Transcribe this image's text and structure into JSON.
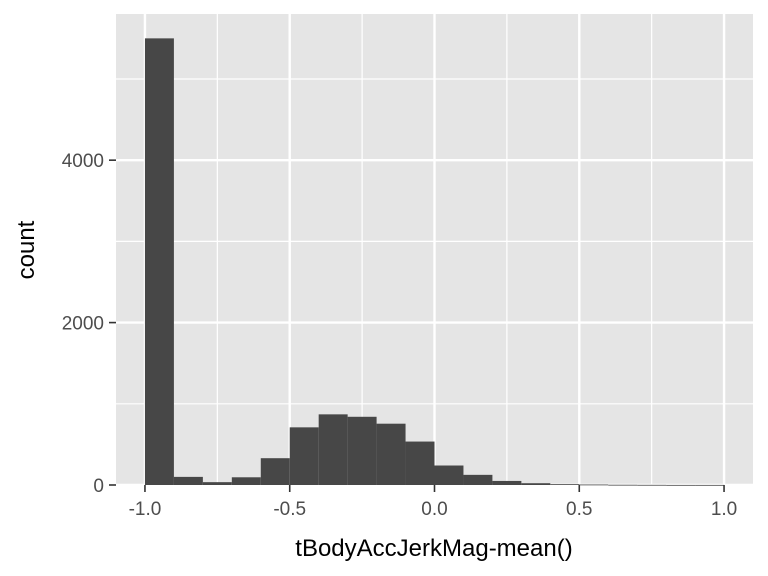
{
  "chart_data": {
    "type": "bar",
    "xlabel": "tBodyAccJerkMag-mean()",
    "ylabel": "count",
    "xlim": [
      -1.1,
      1.1
    ],
    "ylim": [
      0,
      5800
    ],
    "x_ticks": [
      -1.0,
      -0.5,
      0.0,
      0.5,
      1.0
    ],
    "x_tick_labels": [
      "-1.0",
      "-0.5",
      "0.0",
      "0.5",
      "1.0"
    ],
    "y_ticks": [
      0,
      2000,
      4000
    ],
    "y_tick_labels": [
      "0",
      "2000",
      "4000"
    ],
    "bin_width": 0.1,
    "bins": [
      {
        "x": -0.95,
        "count": 5500
      },
      {
        "x": -0.85,
        "count": 100
      },
      {
        "x": -0.75,
        "count": 35
      },
      {
        "x": -0.65,
        "count": 95
      },
      {
        "x": -0.55,
        "count": 330
      },
      {
        "x": -0.45,
        "count": 710
      },
      {
        "x": -0.35,
        "count": 870
      },
      {
        "x": -0.25,
        "count": 840
      },
      {
        "x": -0.15,
        "count": 755
      },
      {
        "x": -0.05,
        "count": 535
      },
      {
        "x": 0.05,
        "count": 240
      },
      {
        "x": 0.15,
        "count": 125
      },
      {
        "x": 0.25,
        "count": 50
      },
      {
        "x": 0.35,
        "count": 22
      },
      {
        "x": 0.45,
        "count": 10
      },
      {
        "x": 0.55,
        "count": 6
      },
      {
        "x": 0.65,
        "count": 3
      },
      {
        "x": 0.75,
        "count": 2
      },
      {
        "x": 0.85,
        "count": 1
      },
      {
        "x": 0.95,
        "count": 1
      }
    ],
    "colors": {
      "panel": "#e5e5e5",
      "grid_major": "#ffffff",
      "bar": "#474747",
      "tick": "#333333"
    },
    "grid": true,
    "legend": "none"
  }
}
